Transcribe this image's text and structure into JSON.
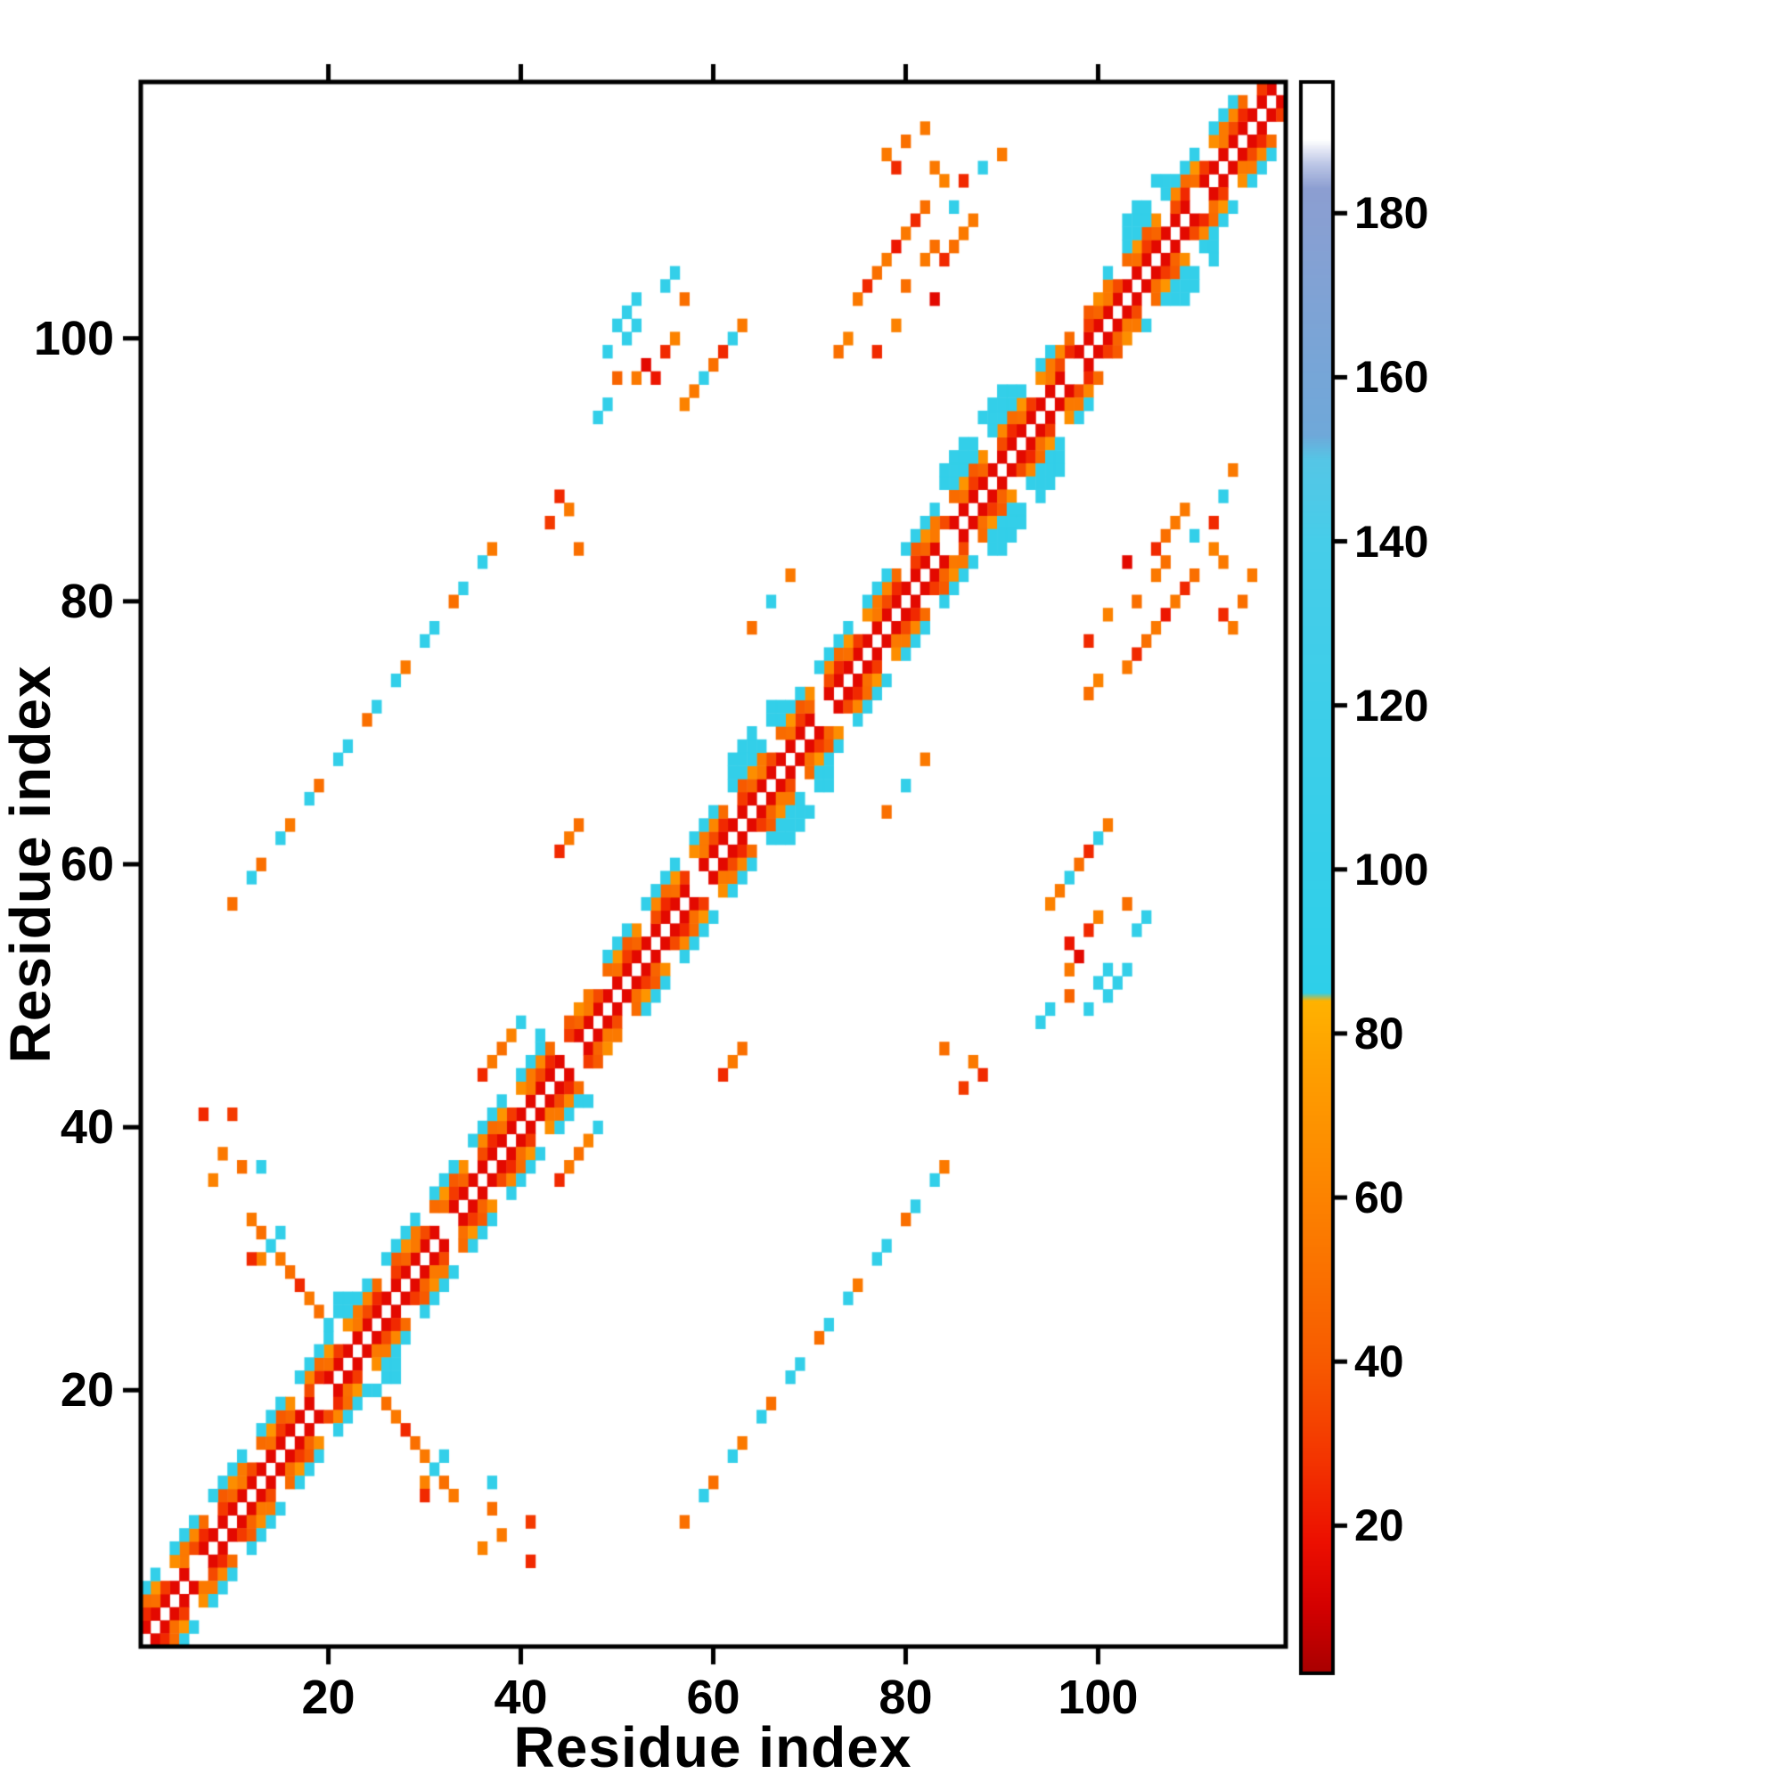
{
  "chart_data": {
    "type": "heatmap",
    "title": "",
    "xlabel": "Residue index",
    "ylabel": "Residue index",
    "n_residues": 119,
    "x_range": [
      0.5,
      119.5
    ],
    "y_range": [
      0.5,
      119.5
    ],
    "x_ticks": [
      20,
      40,
      60,
      80,
      100
    ],
    "y_ticks": [
      20,
      40,
      60,
      80,
      100
    ],
    "x_tick_labels": [
      "20",
      "40",
      "60",
      "80",
      "100"
    ],
    "y_tick_labels": [
      "20",
      "40",
      "60",
      "80",
      "100"
    ],
    "grid": false,
    "background": "#ffffff",
    "frame_color": "#000000",
    "symmetric": true,
    "colorbar": {
      "position": "right",
      "range": [
        2,
        196
      ],
      "ticks": [
        20,
        40,
        60,
        80,
        100,
        120,
        140,
        160,
        180
      ],
      "tick_labels": [
        "20",
        "40",
        "60",
        "80",
        "100",
        "120",
        "140",
        "160",
        "180"
      ]
    },
    "colormap_stops": [
      [
        2,
        "#a80000"
      ],
      [
        10,
        "#d30000"
      ],
      [
        18,
        "#ec0f00"
      ],
      [
        28,
        "#f33400"
      ],
      [
        40,
        "#f75a00"
      ],
      [
        52,
        "#fa7300"
      ],
      [
        64,
        "#fd8a00"
      ],
      [
        76,
        "#fe9f00"
      ],
      [
        84,
        "#ffb200"
      ],
      [
        85,
        "#2ecfe9"
      ],
      [
        140,
        "#46cde9"
      ],
      [
        150,
        "#55c6e6"
      ],
      [
        153,
        "#6fa8d9"
      ],
      [
        183,
        "#8c9ed1"
      ],
      [
        186,
        "#bcc6e6"
      ],
      [
        189,
        "#ffffff"
      ],
      [
        196,
        "#ffffff"
      ]
    ],
    "diagonal_bands": [
      {
        "offset": 1,
        "value": 15
      },
      {
        "offset": 2,
        "values_cycle": [
          35,
          25,
          50,
          30,
          45,
          55
        ]
      },
      {
        "offset": 3,
        "values_cycle": [
          62,
          48,
          70,
          40,
          66,
          55
        ]
      },
      {
        "offset": 4,
        "value": 97,
        "skip_ranges": [
          [
            44,
            48
          ],
          [
            96,
            100
          ]
        ]
      }
    ],
    "hatch1": {
      "mod": 13,
      "lt": 1
    },
    "hatch": {
      "mod": 9,
      "lt": 2
    },
    "bulge_ranges": [
      [
        20,
        27
      ],
      [
        42,
        48
      ],
      [
        62,
        72
      ],
      [
        84,
        96
      ],
      [
        103,
        112
      ]
    ],
    "bulge_offsets": [
      5,
      6
    ],
    "bulge_value": 97,
    "contacts": [
      [
        10,
        57,
        50
      ],
      [
        12,
        59,
        96
      ],
      [
        13,
        60,
        50
      ],
      [
        15,
        62,
        97
      ],
      [
        16,
        63,
        55
      ],
      [
        18,
        65,
        96
      ],
      [
        19,
        66,
        50
      ],
      [
        21,
        68,
        97
      ],
      [
        22,
        69,
        96
      ],
      [
        24,
        71,
        50
      ],
      [
        25,
        72,
        97
      ],
      [
        27,
        74,
        96
      ],
      [
        28,
        75,
        55
      ],
      [
        30,
        77,
        97
      ],
      [
        31,
        78,
        96
      ],
      [
        33,
        80,
        50
      ],
      [
        34,
        81,
        97
      ],
      [
        36,
        83,
        96
      ],
      [
        37,
        84,
        55
      ],
      [
        12,
        33,
        55
      ],
      [
        13,
        32,
        50
      ],
      [
        14,
        31,
        97
      ],
      [
        15,
        30,
        55
      ],
      [
        16,
        29,
        50
      ],
      [
        17,
        28,
        25
      ],
      [
        18,
        27,
        55
      ],
      [
        19,
        26,
        50
      ],
      [
        20,
        25,
        96
      ],
      [
        13,
        30,
        60
      ],
      [
        15,
        32,
        96
      ],
      [
        12,
        30,
        25
      ],
      [
        7,
        41,
        25
      ],
      [
        9,
        38,
        55
      ],
      [
        11,
        37,
        50
      ],
      [
        8,
        36,
        60
      ],
      [
        10,
        41,
        30
      ],
      [
        13,
        37,
        97
      ],
      [
        37,
        45,
        55
      ],
      [
        38,
        46,
        50
      ],
      [
        39,
        47,
        60
      ],
      [
        36,
        44,
        25
      ],
      [
        40,
        48,
        96
      ],
      [
        44,
        88,
        25
      ],
      [
        45,
        87,
        55
      ],
      [
        43,
        86,
        30
      ],
      [
        46,
        84,
        50
      ],
      [
        45,
        62,
        55
      ],
      [
        46,
        63,
        50
      ],
      [
        44,
        61,
        25
      ],
      [
        50,
        101,
        96
      ],
      [
        51,
        102,
        97
      ],
      [
        51,
        100,
        96
      ],
      [
        52,
        101,
        97
      ],
      [
        55,
        104,
        96
      ],
      [
        56,
        105,
        97
      ],
      [
        48,
        94,
        96
      ],
      [
        49,
        95,
        97
      ],
      [
        53,
        98,
        15
      ],
      [
        54,
        97,
        20
      ],
      [
        55,
        99,
        25
      ],
      [
        52,
        97,
        55
      ],
      [
        56,
        100,
        60
      ],
      [
        57,
        103,
        50
      ],
      [
        50,
        97,
        45
      ],
      [
        49,
        99,
        97
      ],
      [
        52,
        103,
        96
      ],
      [
        58,
        96,
        55
      ],
      [
        59,
        97,
        96
      ],
      [
        60,
        98,
        50
      ],
      [
        62,
        100,
        96
      ],
      [
        63,
        101,
        55
      ],
      [
        57,
        95,
        60
      ],
      [
        61,
        99,
        25
      ],
      [
        66,
        80,
        96
      ],
      [
        68,
        82,
        55
      ],
      [
        64,
        78,
        50
      ],
      [
        75,
        103,
        55
      ],
      [
        76,
        104,
        25
      ],
      [
        77,
        105,
        50
      ],
      [
        78,
        106,
        55
      ],
      [
        74,
        100,
        60
      ],
      [
        73,
        99,
        50
      ],
      [
        79,
        107,
        20
      ],
      [
        80,
        108,
        55
      ],
      [
        81,
        109,
        25
      ],
      [
        82,
        110,
        50
      ],
      [
        83,
        113,
        55
      ],
      [
        84,
        112,
        60
      ],
      [
        80,
        104,
        50
      ],
      [
        82,
        106,
        55
      ],
      [
        84,
        106,
        25
      ],
      [
        85,
        107,
        50
      ],
      [
        86,
        108,
        55
      ],
      [
        79,
        101,
        60
      ],
      [
        77,
        99,
        25
      ],
      [
        78,
        114,
        55
      ],
      [
        80,
        115,
        50
      ],
      [
        82,
        116,
        55
      ],
      [
        79,
        113,
        25
      ],
      [
        83,
        103,
        15
      ],
      [
        85,
        110,
        96
      ],
      [
        87,
        109,
        55
      ],
      [
        88,
        113,
        96
      ],
      [
        90,
        114,
        55
      ],
      [
        83,
        107,
        50
      ],
      [
        86,
        112,
        25
      ]
    ]
  }
}
